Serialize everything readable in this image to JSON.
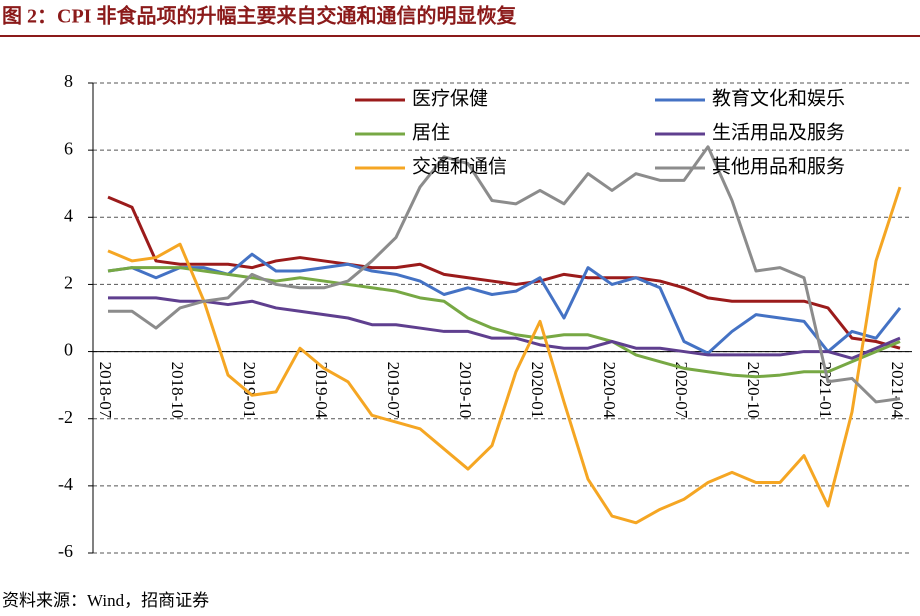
{
  "chart_data": {
    "type": "line",
    "title": "图 2：CPI 非食品项的升幅主要来自交通和通信的明显恢复",
    "source": "资料来源：Wind，招商证券",
    "categories": [
      "2018-07",
      null,
      null,
      "2018-10",
      null,
      null,
      "2019-01",
      null,
      null,
      "2019-04",
      null,
      null,
      "2019-07",
      null,
      null,
      "2019-10",
      null,
      null,
      "2020-01",
      null,
      null,
      "2020-04",
      null,
      null,
      "2020-07",
      null,
      null,
      "2020-10",
      null,
      null,
      "2021-01",
      null,
      null,
      "2021-04"
    ],
    "series": [
      {
        "name": "医疗保健",
        "color": "#9b1b1b",
        "values": [
          4.6,
          4.3,
          2.7,
          2.6,
          2.6,
          2.6,
          2.5,
          2.7,
          2.8,
          2.7,
          2.6,
          2.5,
          2.5,
          2.6,
          2.3,
          2.2,
          2.1,
          2.0,
          2.1,
          2.3,
          2.2,
          2.2,
          2.2,
          2.1,
          1.9,
          1.6,
          1.5,
          1.5,
          1.5,
          1.5,
          1.3,
          0.4,
          0.3,
          0.1
        ]
      },
      {
        "name": "教育文化和娱乐",
        "color": "#4472c4",
        "values": [
          2.4,
          2.5,
          2.2,
          2.5,
          2.5,
          2.3,
          2.9,
          2.4,
          2.4,
          2.5,
          2.6,
          2.4,
          2.3,
          2.1,
          1.7,
          1.9,
          1.7,
          1.8,
          2.2,
          1.0,
          2.5,
          2.0,
          2.2,
          1.9,
          0.3,
          -0.05,
          0.6,
          1.1,
          1.0,
          0.9,
          0.0,
          0.6,
          0.4,
          1.3
        ]
      },
      {
        "name": "居住",
        "color": "#77a844",
        "values": [
          2.4,
          2.5,
          2.5,
          2.5,
          2.4,
          2.3,
          2.2,
          2.1,
          2.2,
          2.1,
          2.0,
          1.9,
          1.8,
          1.6,
          1.5,
          1.0,
          0.7,
          0.5,
          0.4,
          0.5,
          0.5,
          0.3,
          -0.1,
          -0.3,
          -0.5,
          -0.6,
          -0.7,
          -0.75,
          -0.7,
          -0.6,
          -0.6,
          -0.3,
          0.0,
          0.3
        ]
      },
      {
        "name": "生活用品及服务",
        "color": "#5f3f8f",
        "values": [
          1.6,
          1.6,
          1.6,
          1.5,
          1.5,
          1.4,
          1.5,
          1.3,
          1.2,
          1.1,
          1.0,
          0.8,
          0.8,
          0.7,
          0.6,
          0.6,
          0.4,
          0.4,
          0.2,
          0.1,
          0.1,
          0.3,
          0.1,
          0.1,
          0.0,
          -0.1,
          -0.1,
          -0.1,
          -0.1,
          0.0,
          0.0,
          -0.2,
          0.1,
          0.4
        ]
      },
      {
        "name": "交通和通信",
        "color": "#f5a623",
        "values": [
          3.0,
          2.7,
          2.8,
          3.2,
          1.5,
          -0.7,
          -1.3,
          -1.2,
          0.1,
          -0.5,
          -0.9,
          -1.9,
          -2.1,
          -2.3,
          -2.9,
          -3.5,
          -2.8,
          -0.6,
          0.9,
          -1.5,
          -3.8,
          -4.9,
          -5.1,
          -4.7,
          -4.4,
          -3.9,
          -3.6,
          -3.9,
          -3.9,
          -3.1,
          -4.6,
          -1.8,
          2.7,
          4.9
        ]
      },
      {
        "name": "其他用品和服务",
        "color": "#8c8c8c",
        "values": [
          1.2,
          1.2,
          0.7,
          1.3,
          1.5,
          1.6,
          2.3,
          2.0,
          1.9,
          1.9,
          2.1,
          2.7,
          3.4,
          4.9,
          5.8,
          5.6,
          4.5,
          4.4,
          4.8,
          4.4,
          5.3,
          4.8,
          5.3,
          5.1,
          5.1,
          6.1,
          4.5,
          2.4,
          2.5,
          2.2,
          -0.9,
          -0.8,
          -1.5,
          -1.4
        ]
      }
    ],
    "ylim": [
      -6,
      8
    ],
    "yticks": [
      -6,
      -4,
      -2,
      0,
      2,
      4,
      6,
      8
    ],
    "grid": true,
    "legend": "top"
  }
}
